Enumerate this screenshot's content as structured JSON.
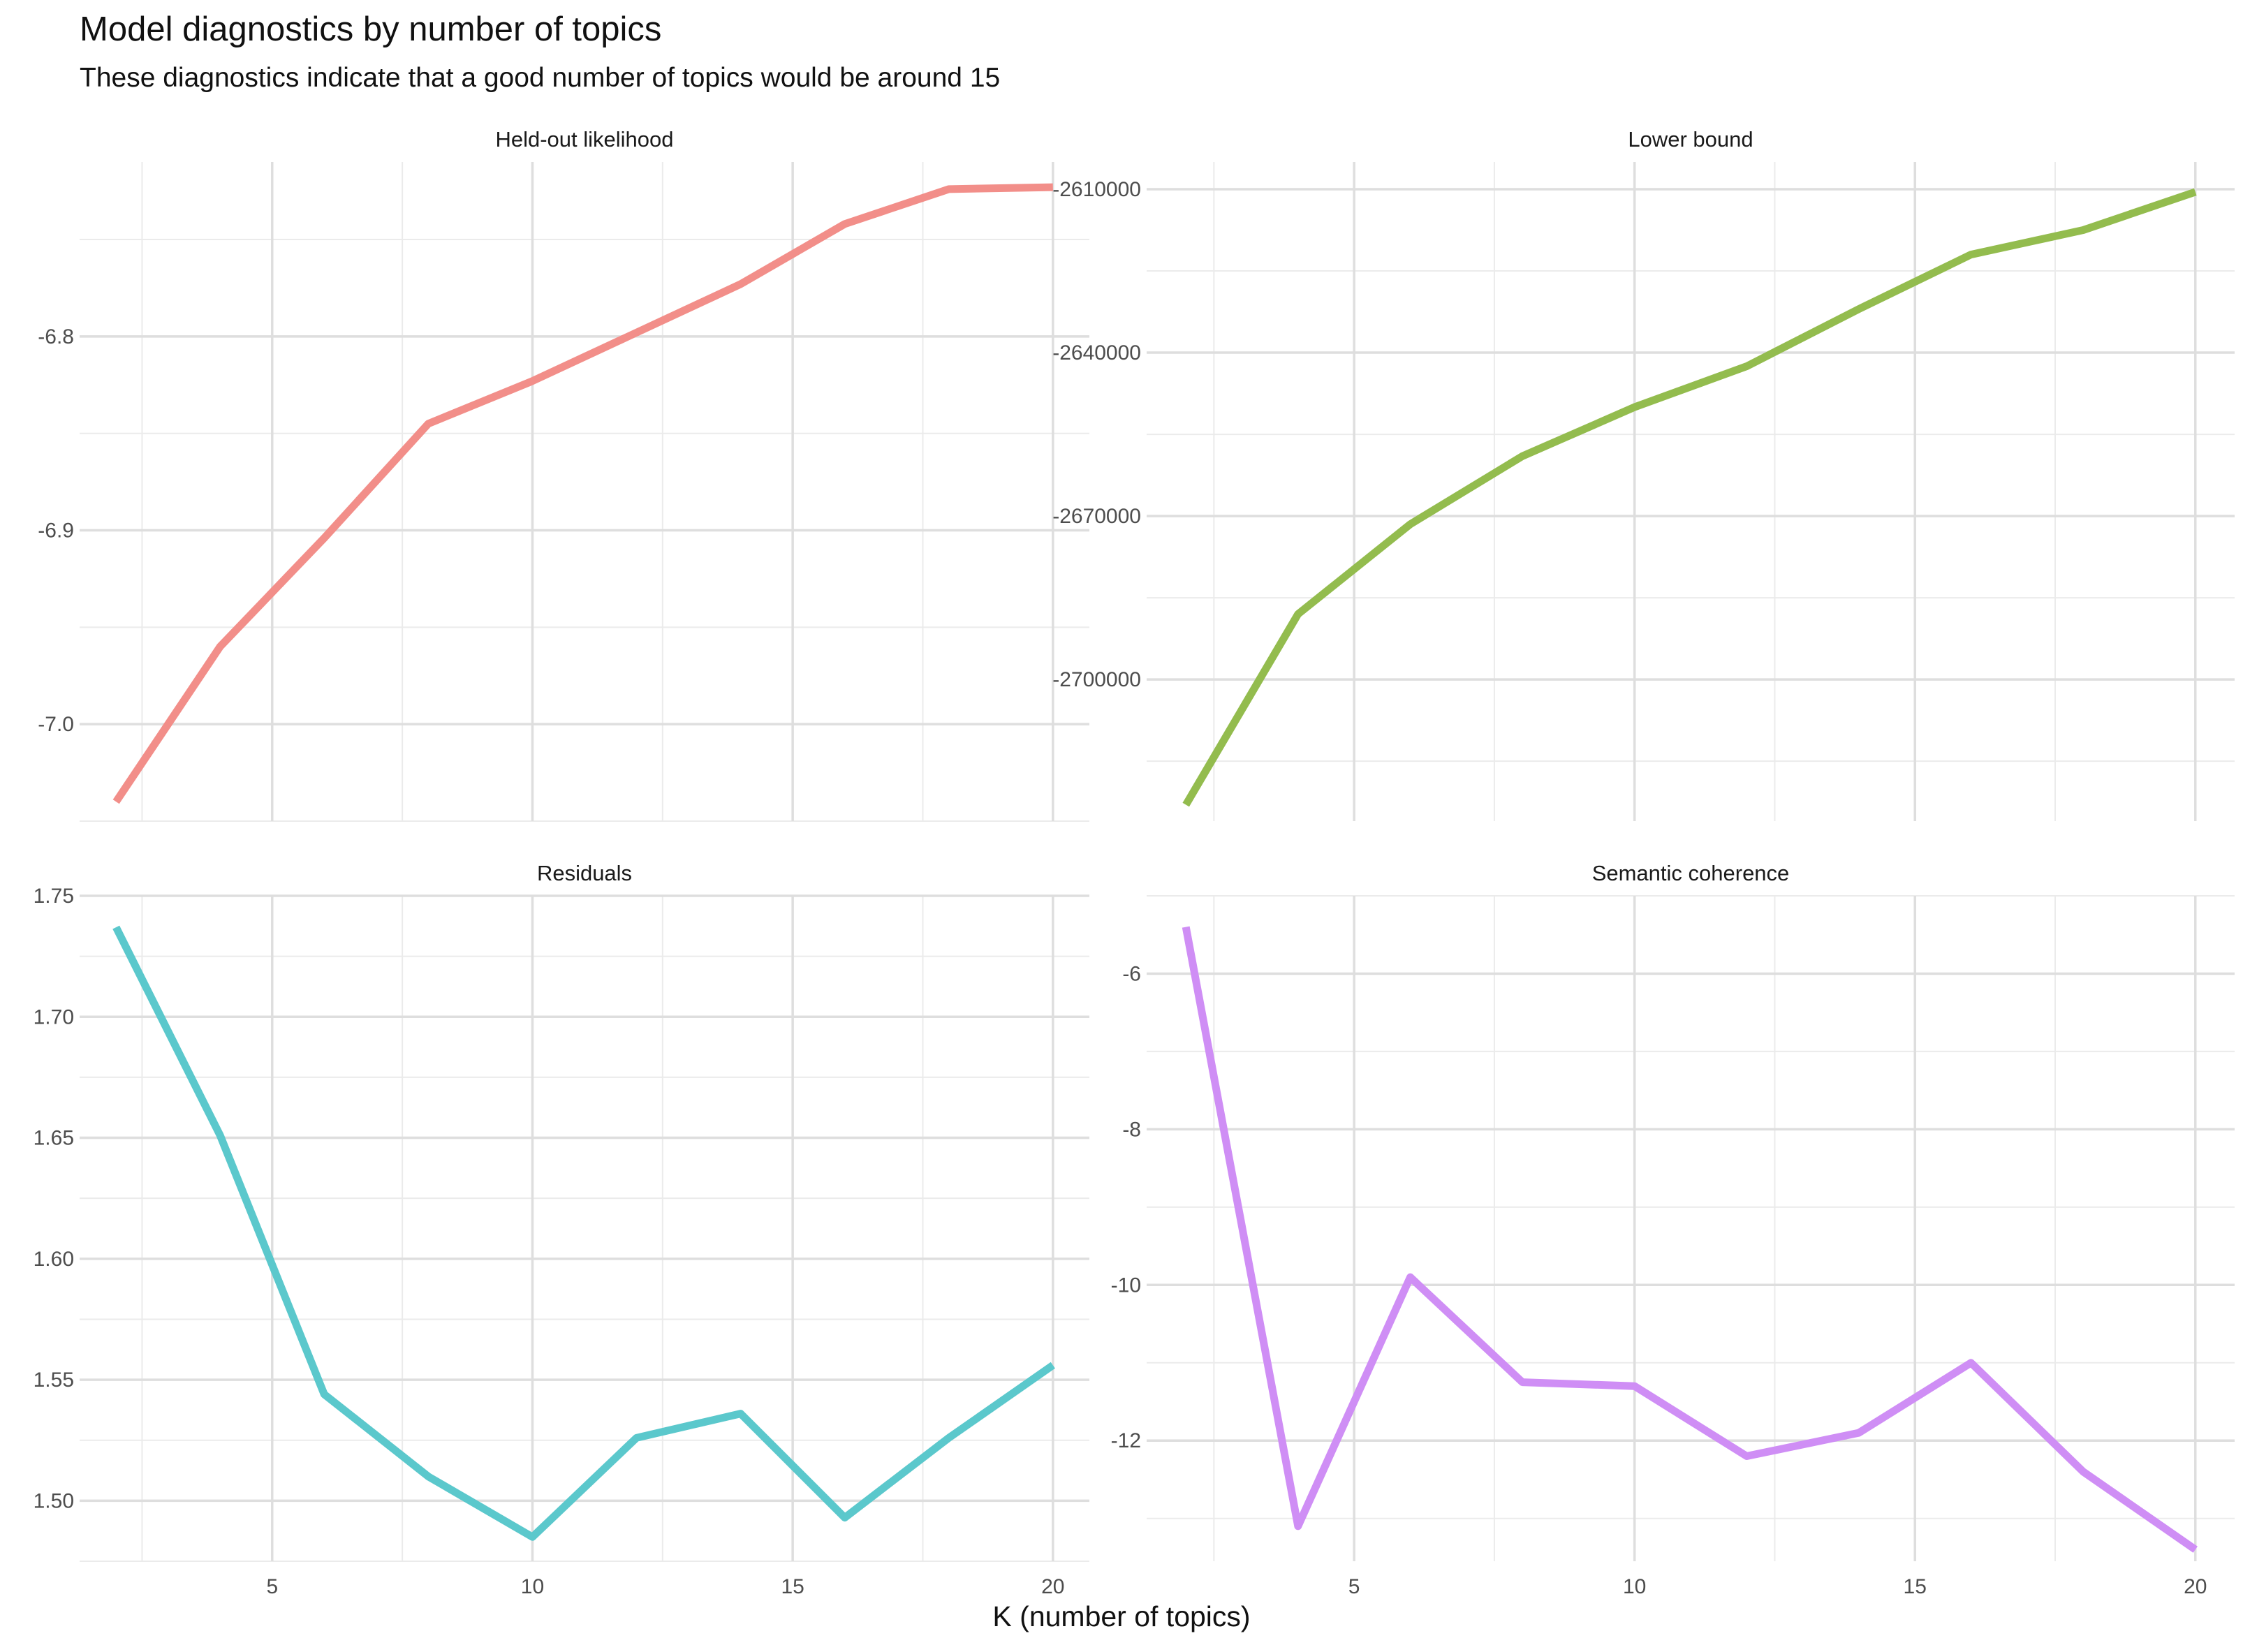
{
  "title": "Model diagnostics by number of topics",
  "subtitle": "These diagnostics indicate that a good number of topics would be around 15",
  "xlabel": "K (number of topics)",
  "chart_data": [
    {
      "type": "line",
      "title": "Held-out likelihood",
      "color": "#F28E89",
      "x": [
        2,
        4,
        6,
        8,
        10,
        12,
        14,
        16,
        18,
        20
      ],
      "y": [
        -7.04,
        -6.96,
        -6.904,
        -6.845,
        -6.823,
        -6.798,
        -6.773,
        -6.742,
        -6.724,
        -6.723
      ],
      "xlim": [
        1.3,
        20.7
      ],
      "ylim": [
        -7.05,
        -6.71
      ],
      "xticks": [
        5,
        10,
        15,
        20
      ],
      "yticks": [
        -7.0,
        -6.9,
        -6.8
      ],
      "ytick_labels": [
        "-7.0",
        "-6.9",
        "-6.8"
      ],
      "grid": true
    },
    {
      "type": "line",
      "title": "Lower bound",
      "color": "#93BC4E",
      "x": [
        2,
        4,
        6,
        8,
        10,
        12,
        14,
        16,
        18,
        20
      ],
      "y": [
        -2723000,
        -2688000,
        -2671500,
        -2659000,
        -2650000,
        -2642500,
        -2632000,
        -2622000,
        -2617500,
        -2610500
      ],
      "xlim": [
        1.3,
        20.7
      ],
      "ylim": [
        -2726000,
        -2605000
      ],
      "xticks": [
        5,
        10,
        15,
        20
      ],
      "yticks": [
        -2700000,
        -2670000,
        -2640000,
        -2610000
      ],
      "ytick_labels": [
        "-2700000",
        "-2670000",
        "-2640000",
        "-2610000"
      ],
      "grid": true
    },
    {
      "type": "line",
      "title": "Residuals",
      "color": "#5BC8CC",
      "x": [
        2,
        4,
        6,
        8,
        10,
        12,
        14,
        16,
        18,
        20
      ],
      "y": [
        1.737,
        1.651,
        1.544,
        1.51,
        1.485,
        1.526,
        1.536,
        1.493,
        1.526,
        1.556
      ],
      "xlim": [
        1.3,
        20.7
      ],
      "ylim": [
        1.475,
        1.75
      ],
      "xticks": [
        5,
        10,
        15,
        20
      ],
      "yticks": [
        1.5,
        1.55,
        1.6,
        1.65,
        1.7,
        1.75
      ],
      "ytick_labels": [
        "1.50",
        "1.55",
        "1.60",
        "1.65",
        "1.70",
        "1.75"
      ],
      "grid": true
    },
    {
      "type": "line",
      "title": "Semantic coherence",
      "color": "#CF8EF5",
      "x": [
        2,
        4,
        6,
        8,
        10,
        12,
        14,
        16,
        18,
        20
      ],
      "y": [
        -5.4,
        -13.1,
        -9.9,
        -11.25,
        -11.3,
        -12.2,
        -11.9,
        -11.0,
        -12.4,
        -13.4
      ],
      "xlim": [
        1.3,
        20.7
      ],
      "ylim": [
        -13.55,
        -5.0
      ],
      "xticks": [
        5,
        10,
        15,
        20
      ],
      "yticks": [
        -12,
        -10,
        -8,
        -6
      ],
      "ytick_labels": [
        "-12",
        "-10",
        "-8",
        "-6"
      ],
      "grid": true
    }
  ]
}
